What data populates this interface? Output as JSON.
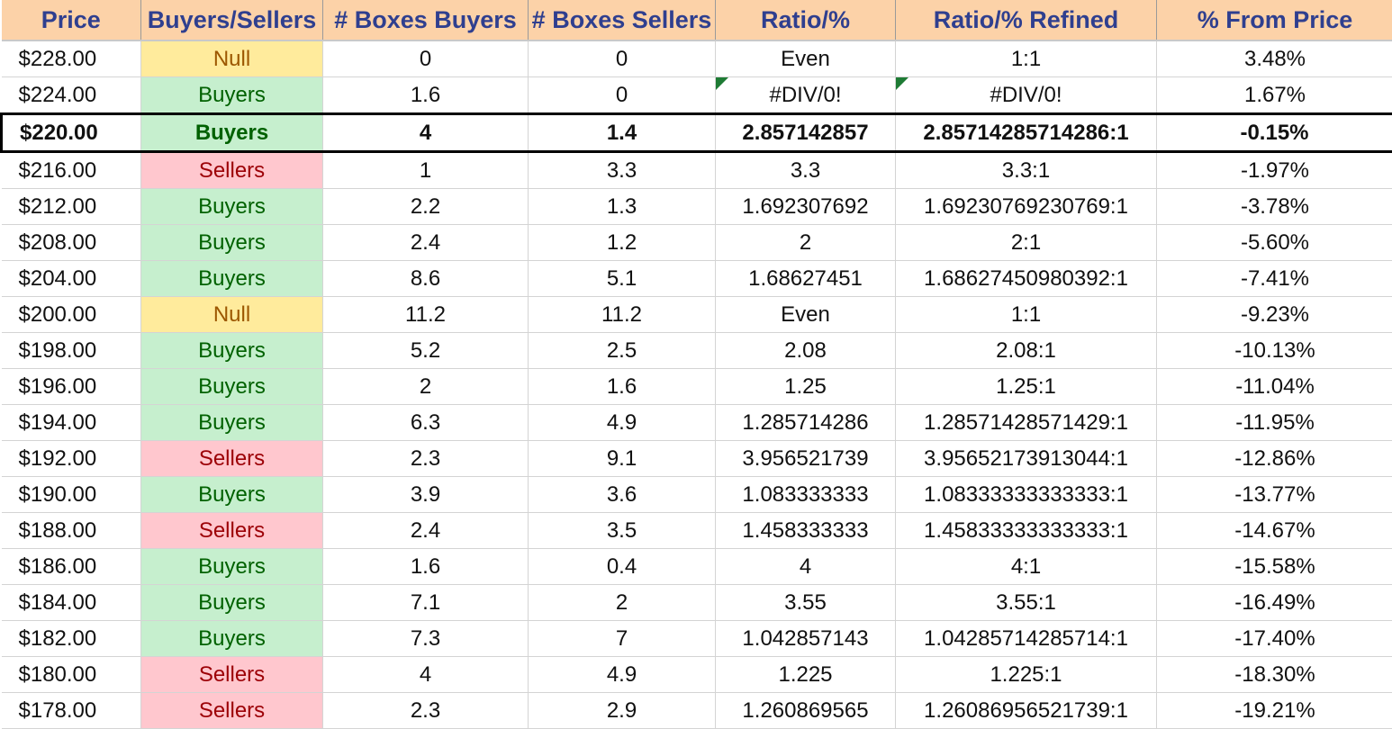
{
  "sheet": {
    "headers": [
      "Price",
      "Buyers/Sellers",
      "# Boxes Buyers",
      "# Boxes Sellers",
      "Ratio/%",
      "Ratio/% Refined",
      "% From Price"
    ],
    "current_row_index": 2,
    "error_flag_color": "#1e7b34",
    "classification_colors": {
      "Buyers": {
        "fill": "#c6efce",
        "text": "#006100"
      },
      "Sellers": {
        "fill": "#ffc7ce",
        "text": "#9c0006"
      },
      "Null": {
        "fill": "#ffeb9c",
        "text": "#9c5700"
      }
    },
    "rows": [
      {
        "price": "$228.00",
        "side": "Null",
        "buyers": "0",
        "sellers": "0",
        "ratio": "Even",
        "ratio_refined": "1:1",
        "from_price": "3.48%"
      },
      {
        "price": "$224.00",
        "side": "Buyers",
        "buyers": "1.6",
        "sellers": "0",
        "ratio": "#DIV/0!",
        "ratio_refined": "#DIV/0!",
        "from_price": "1.67%"
      },
      {
        "price": "$220.00",
        "side": "Buyers",
        "buyers": "4",
        "sellers": "1.4",
        "ratio": "2.857142857",
        "ratio_refined": "2.85714285714286:1",
        "from_price": "-0.15%"
      },
      {
        "price": "$216.00",
        "side": "Sellers",
        "buyers": "1",
        "sellers": "3.3",
        "ratio": "3.3",
        "ratio_refined": "3.3:1",
        "from_price": "-1.97%"
      },
      {
        "price": "$212.00",
        "side": "Buyers",
        "buyers": "2.2",
        "sellers": "1.3",
        "ratio": "1.692307692",
        "ratio_refined": "1.69230769230769:1",
        "from_price": "-3.78%"
      },
      {
        "price": "$208.00",
        "side": "Buyers",
        "buyers": "2.4",
        "sellers": "1.2",
        "ratio": "2",
        "ratio_refined": "2:1",
        "from_price": "-5.60%"
      },
      {
        "price": "$204.00",
        "side": "Buyers",
        "buyers": "8.6",
        "sellers": "5.1",
        "ratio": "1.68627451",
        "ratio_refined": "1.68627450980392:1",
        "from_price": "-7.41%"
      },
      {
        "price": "$200.00",
        "side": "Null",
        "buyers": "11.2",
        "sellers": "11.2",
        "ratio": "Even",
        "ratio_refined": "1:1",
        "from_price": "-9.23%"
      },
      {
        "price": "$198.00",
        "side": "Buyers",
        "buyers": "5.2",
        "sellers": "2.5",
        "ratio": "2.08",
        "ratio_refined": "2.08:1",
        "from_price": "-10.13%"
      },
      {
        "price": "$196.00",
        "side": "Buyers",
        "buyers": "2",
        "sellers": "1.6",
        "ratio": "1.25",
        "ratio_refined": "1.25:1",
        "from_price": "-11.04%"
      },
      {
        "price": "$194.00",
        "side": "Buyers",
        "buyers": "6.3",
        "sellers": "4.9",
        "ratio": "1.285714286",
        "ratio_refined": "1.28571428571429:1",
        "from_price": "-11.95%"
      },
      {
        "price": "$192.00",
        "side": "Sellers",
        "buyers": "2.3",
        "sellers": "9.1",
        "ratio": "3.956521739",
        "ratio_refined": "3.95652173913044:1",
        "from_price": "-12.86%"
      },
      {
        "price": "$190.00",
        "side": "Buyers",
        "buyers": "3.9",
        "sellers": "3.6",
        "ratio": "1.083333333",
        "ratio_refined": "1.08333333333333:1",
        "from_price": "-13.77%"
      },
      {
        "price": "$188.00",
        "side": "Sellers",
        "buyers": "2.4",
        "sellers": "3.5",
        "ratio": "1.458333333",
        "ratio_refined": "1.45833333333333:1",
        "from_price": "-14.67%"
      },
      {
        "price": "$186.00",
        "side": "Buyers",
        "buyers": "1.6",
        "sellers": "0.4",
        "ratio": "4",
        "ratio_refined": "4:1",
        "from_price": "-15.58%"
      },
      {
        "price": "$184.00",
        "side": "Buyers",
        "buyers": "7.1",
        "sellers": "2",
        "ratio": "3.55",
        "ratio_refined": "3.55:1",
        "from_price": "-16.49%"
      },
      {
        "price": "$182.00",
        "side": "Buyers",
        "buyers": "7.3",
        "sellers": "7",
        "ratio": "1.042857143",
        "ratio_refined": "1.04285714285714:1",
        "from_price": "-17.40%"
      },
      {
        "price": "$180.00",
        "side": "Sellers",
        "buyers": "4",
        "sellers": "4.9",
        "ratio": "1.225",
        "ratio_refined": "1.225:1",
        "from_price": "-18.30%"
      },
      {
        "price": "$178.00",
        "side": "Sellers",
        "buyers": "2.3",
        "sellers": "2.9",
        "ratio": "1.260869565",
        "ratio_refined": "1.26086956521739:1",
        "from_price": "-19.21%"
      }
    ]
  }
}
